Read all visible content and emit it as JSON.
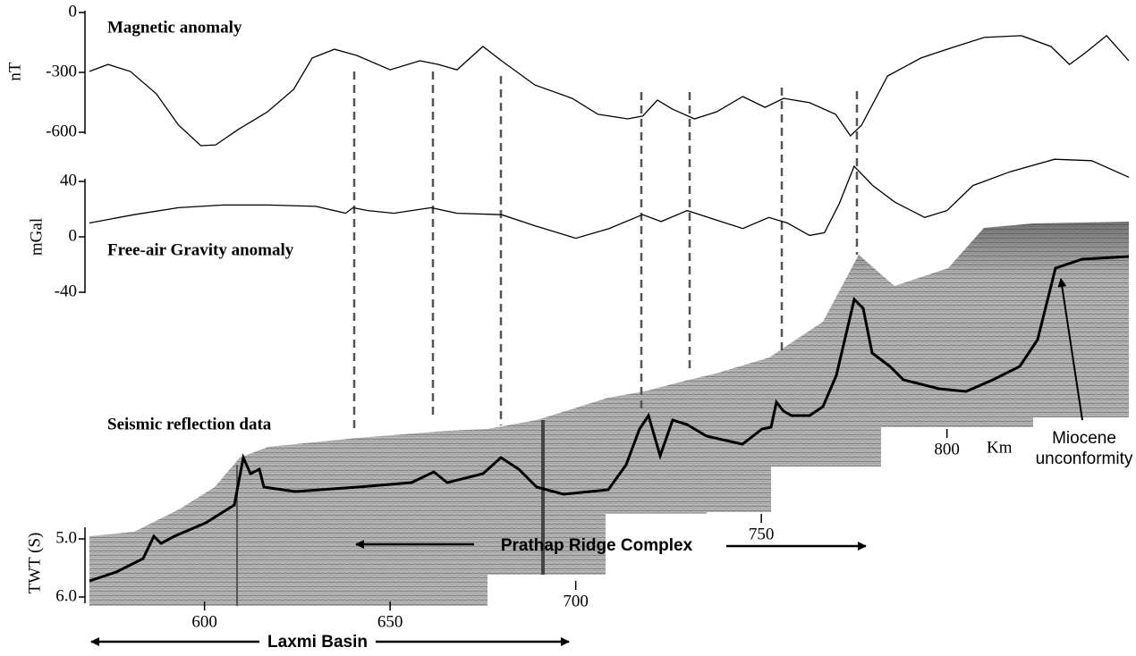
{
  "chart_data": [
    {
      "type": "line",
      "title": "Magnetic anomaly",
      "ylabel": "nT",
      "ylim": [
        -600,
        0
      ],
      "yticks": [
        0,
        -300,
        -600
      ],
      "color": "#000000",
      "x": [
        569,
        574,
        580,
        587,
        593,
        599,
        603,
        609,
        617,
        624,
        629,
        635,
        641,
        650,
        658,
        663,
        668,
        675,
        680,
        689,
        699,
        706,
        714,
        718,
        722,
        726,
        732,
        738,
        745,
        751,
        756,
        763,
        770,
        774,
        777,
        784,
        793,
        800,
        810,
        820,
        828,
        833,
        837,
        843,
        849
      ],
      "values": [
        -295,
        -260,
        -295,
        -407,
        -564,
        -667,
        -663,
        -587,
        -497,
        -385,
        -228,
        -184,
        -215,
        -287,
        -242,
        -260,
        -287,
        -170,
        -242,
        -363,
        -430,
        -510,
        -533,
        -519,
        -439,
        -484,
        -533,
        -497,
        -421,
        -475,
        -430,
        -452,
        -510,
        -618,
        -564,
        -318,
        -228,
        -184,
        -125,
        -116,
        -170,
        -260,
        -206,
        -116,
        -242
      ]
    },
    {
      "type": "line",
      "title": "Free-air Gravity anomaly",
      "ylabel": "mGal",
      "ylim": [
        -40,
        40
      ],
      "yticks": [
        40,
        0,
        -40
      ],
      "color": "#000000",
      "x": [
        569,
        581,
        593,
        605,
        617,
        630,
        638,
        640,
        644,
        651,
        661,
        668,
        680,
        689,
        700,
        709,
        718,
        723,
        730,
        738,
        745,
        752,
        757,
        763,
        767,
        771,
        775,
        780,
        786,
        794,
        800,
        807,
        817,
        829,
        839,
        849
      ],
      "values": [
        10,
        16,
        21,
        23,
        23,
        22,
        17,
        21,
        19,
        17,
        21,
        17,
        16,
        8,
        -1,
        6,
        16,
        11,
        19,
        12,
        6,
        14,
        10,
        1,
        3,
        24,
        51,
        37,
        25,
        14,
        19,
        37,
        47,
        56,
        55,
        43
      ]
    },
    {
      "type": "seismic",
      "title": "Seismic reflection data",
      "ylabel": "TWT (S)",
      "ylim": [
        4.8,
        6.1
      ],
      "yticks": [
        {
          "value": 5,
          "label": "5.0"
        },
        {
          "value": 6,
          "label": "6.0"
        }
      ],
      "xticks": [
        600,
        650,
        700,
        750,
        800
      ],
      "xlabel": "Km",
      "annotations": [
        "Prathap Ridge Complex",
        "Laxmi Basin"
      ],
      "callout": [
        "Miocene",
        "unconformity"
      ]
    }
  ]
}
